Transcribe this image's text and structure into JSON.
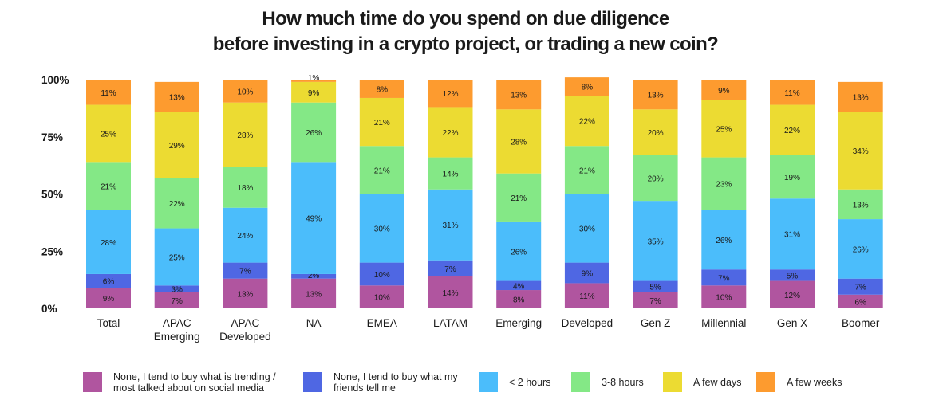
{
  "chart_data": {
    "type": "bar",
    "stacked": true,
    "title": "How much time do you spend on due diligence before investing in a crypto project, or trading a new coin?",
    "title_lines": [
      "How much time do you spend on due diligence",
      "before investing in a crypto project, or trading a new coin?"
    ],
    "xlabel": "",
    "ylabel": "",
    "ylim": [
      0,
      100
    ],
    "yticks": [
      0,
      25,
      50,
      75,
      100
    ],
    "ytick_labels": [
      "0%",
      "25%",
      "50%",
      "75%",
      "100%"
    ],
    "grid": false,
    "legend_position": "bottom",
    "categories": [
      "Total",
      "APAC Emerging",
      "APAC Developed",
      "NA",
      "EMEA",
      "LATAM",
      "Emerging",
      "Developed",
      "Gen Z",
      "Millennial",
      "Gen X",
      "Boomer"
    ],
    "category_lines": [
      [
        "Total"
      ],
      [
        "APAC",
        "Emerging"
      ],
      [
        "APAC",
        "Developed"
      ],
      [
        "NA"
      ],
      [
        "EMEA"
      ],
      [
        "LATAM"
      ],
      [
        "Emerging"
      ],
      [
        "Developed"
      ],
      [
        "Gen Z"
      ],
      [
        "Millennial"
      ],
      [
        "Gen X"
      ],
      [
        "Boomer"
      ]
    ],
    "series": [
      {
        "name": "None, I tend to buy what is trending / most talked about on social media",
        "legend_lines": "None, I tend to buy what is trending /\nmost talked about on social media",
        "color": "#b0559f",
        "values": [
          9,
          7,
          13,
          13,
          10,
          14,
          8,
          11,
          7,
          10,
          12,
          6
        ]
      },
      {
        "name": "None, I tend to buy what my friends tell me",
        "legend_lines": "None, I tend to buy what my\nfriends tell me",
        "color": "#4f67e3",
        "values": [
          6,
          3,
          7,
          2,
          10,
          7,
          4,
          9,
          5,
          7,
          5,
          7
        ]
      },
      {
        "name": "< 2 hours",
        "legend_lines": "< 2 hours",
        "color": "#4bbdfb",
        "values": [
          28,
          25,
          24,
          49,
          30,
          31,
          26,
          30,
          35,
          26,
          31,
          26
        ]
      },
      {
        "name": "3-8 hours",
        "legend_lines": "3-8 hours",
        "color": "#84e886",
        "values": [
          21,
          22,
          18,
          26,
          21,
          14,
          21,
          21,
          20,
          23,
          19,
          13
        ]
      },
      {
        "name": "A few days",
        "legend_lines": "A few days",
        "color": "#ecdb32",
        "values": [
          25,
          29,
          28,
          9,
          21,
          22,
          28,
          22,
          20,
          25,
          22,
          34
        ]
      },
      {
        "name": "A few weeks",
        "legend_lines": "A few weeks",
        "color": "#fd9b2f",
        "values": [
          11,
          13,
          10,
          1,
          8,
          12,
          13,
          8,
          13,
          9,
          11,
          13
        ]
      }
    ]
  }
}
